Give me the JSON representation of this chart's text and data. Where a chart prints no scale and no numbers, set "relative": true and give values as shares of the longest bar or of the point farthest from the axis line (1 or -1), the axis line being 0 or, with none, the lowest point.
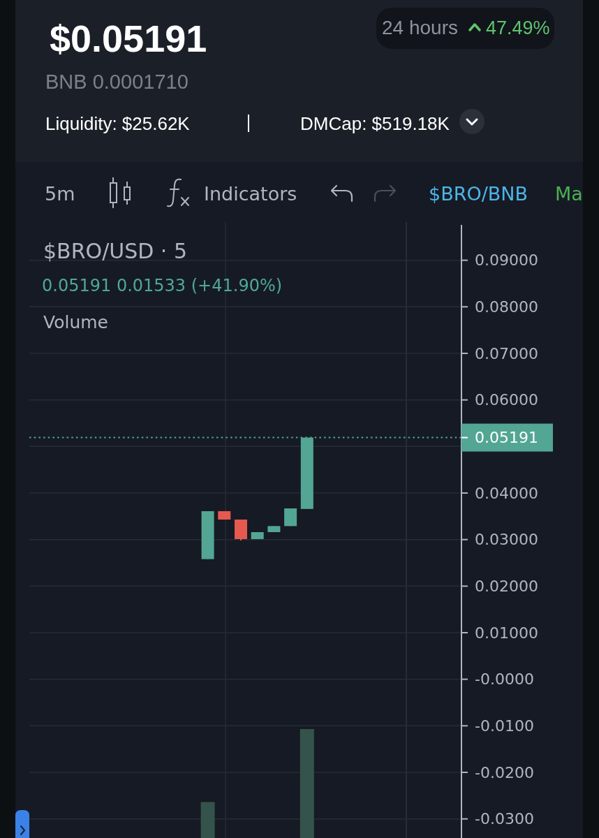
{
  "chart_data": [
    {
      "type": "candlestick",
      "title": "$BRO/USD · 5",
      "annotations": [
        "$0.05191",
        "24 hours",
        "47.49%",
        "BNB 0.0001710",
        "Liquidity: $25.62K",
        "DMCap: $519.18K",
        "5m",
        "Indicators",
        "$BRO/BNB",
        "Ma",
        "0.05191 0.01533 (+41.90%)"
      ],
      "categories": [
        null,
        null,
        null,
        null,
        null,
        null,
        null,
        null,
        null,
        null,
        null,
        null,
        null,
        null,
        null,
        null,
        null,
        null,
        null,
        null,
        null,
        null,
        null,
        null,
        null,
        null,
        null
      ],
      "ohlc": [
        null,
        null,
        null,
        null,
        null,
        null,
        null,
        null,
        null,
        null,
        null,
        [
          0.0258,
          0.0361,
          0.0258,
          0.0361
        ],
        [
          0.0361,
          0.0361,
          0.0343,
          0.0343
        ],
        [
          0.0343,
          0.0343,
          0.0298,
          0.0301
        ],
        [
          0.0301,
          0.0316,
          0.0301,
          0.0316
        ],
        [
          0.0316,
          0.0329,
          0.0316,
          0.0329
        ],
        [
          0.0329,
          0.0367,
          0.0329,
          0.0367
        ],
        [
          0.03658,
          0.05191,
          0.03658,
          0.05191
        ],
        null,
        null,
        null,
        null,
        null,
        null,
        null,
        null,
        null
      ],
      "colors": [
        null,
        null,
        null,
        null,
        null,
        null,
        null,
        null,
        null,
        null,
        null,
        "#52a693",
        "#e5594f",
        "#e5594f",
        "#52a693",
        "#52a693",
        "#52a693",
        "#52a693",
        null,
        null,
        null,
        null,
        null,
        null,
        null,
        null,
        null
      ],
      "ylim": [
        -0.0341,
        0.0976
      ],
      "yticks": [
        {
          "value": 0.09,
          "label": "0.09000"
        },
        {
          "value": 0.08,
          "label": "0.08000"
        },
        {
          "value": 0.07,
          "label": "0.07000"
        },
        {
          "value": 0.06,
          "label": "0.06000"
        },
        {
          "value": 0.05,
          "label": null
        },
        {
          "value": 0.04,
          "label": "0.04000"
        },
        {
          "value": 0.03,
          "label": "0.03000"
        },
        {
          "value": 0.02,
          "label": "0.02000"
        },
        {
          "value": 0.01,
          "label": "0.01000"
        },
        {
          "value": 0,
          "label": "-0.0000"
        },
        {
          "value": -0.01,
          "label": "-0.0100"
        },
        {
          "value": -0.02,
          "label": "-0.0200"
        },
        {
          "value": -0.03,
          "label": "-0.0300"
        }
      ],
      "grid": "y",
      "tick_labels": "y",
      "ref_lines": [
        {
          "axis": "y",
          "value": 0.05191,
          "label": "0.05191",
          "color": "#52a693",
          "line_style": "dotted"
        }
      ]
    },
    {
      "type": "bar",
      "title": "Volume",
      "relative": true,
      "categories": [
        null,
        null,
        null,
        null,
        null,
        null,
        null,
        null,
        null,
        null,
        null,
        null,
        null,
        null,
        null,
        null,
        null,
        null,
        null,
        null,
        null,
        null,
        null,
        null,
        null,
        null,
        null
      ],
      "values": [
        null,
        null,
        null,
        null,
        null,
        null,
        null,
        null,
        null,
        null,
        null,
        0.33,
        null,
        null,
        null,
        null,
        null,
        1,
        null,
        null,
        null,
        null,
        null,
        null,
        null,
        null,
        null
      ],
      "color": "#34534a"
    }
  ]
}
